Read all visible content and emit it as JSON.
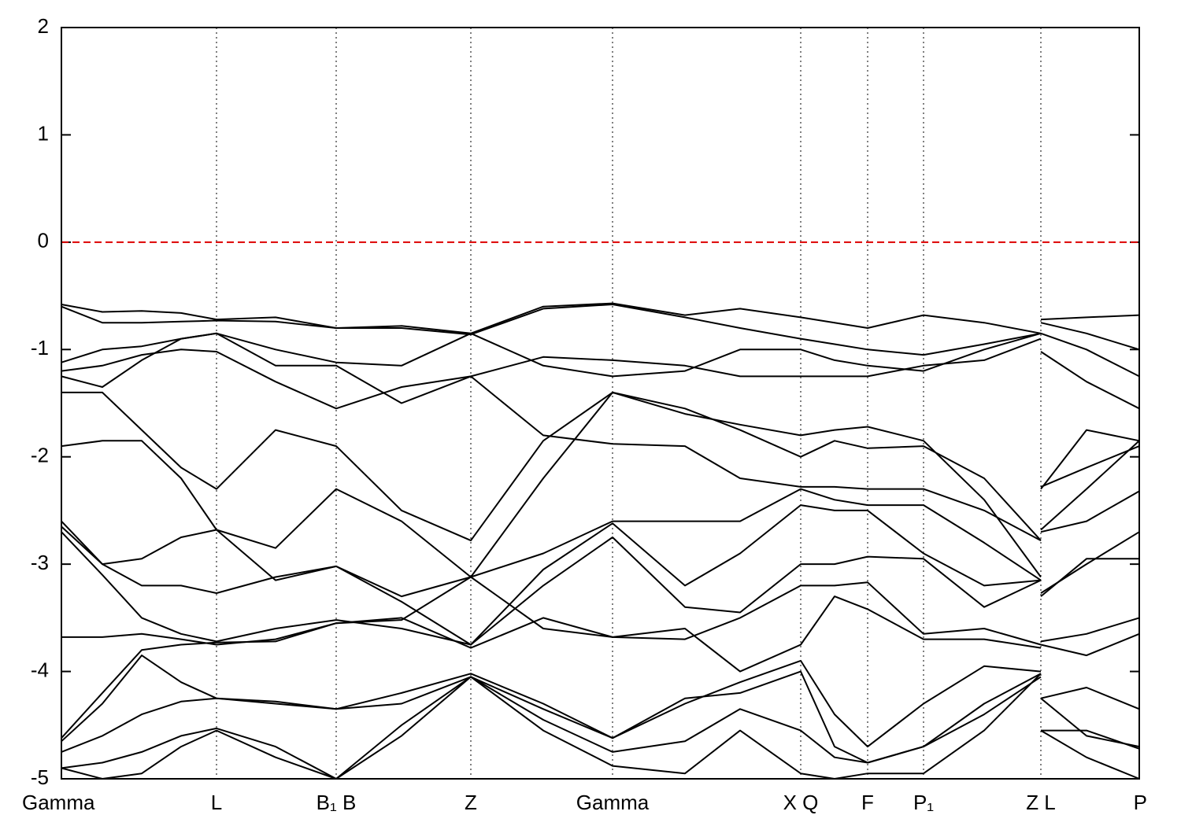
{
  "chart_data": {
    "type": "line",
    "xlim": [
      0,
      6.845
    ],
    "ylim": [
      -5,
      2
    ],
    "yticks": [
      -5,
      -4,
      -3,
      -2,
      -1,
      0,
      1,
      2
    ],
    "xticks": [
      {
        "value": 0,
        "label": "Gamma"
      },
      {
        "value": 0.985,
        "label": "L"
      },
      {
        "value": 1.745,
        "label": "B₁ B"
      },
      {
        "value": 2.6,
        "label": "Z"
      },
      {
        "value": 3.5,
        "label": "Gamma"
      },
      {
        "value": 4.695,
        "label": "X Q"
      },
      {
        "value": 5.12,
        "label": "F"
      },
      {
        "value": 5.475,
        "label": "P₁"
      },
      {
        "value": 6.22,
        "label": "Z L"
      },
      {
        "value": 6.845,
        "label": "P"
      }
    ],
    "grid": true,
    "fermi_level": 0,
    "fermi_color": "#dd0000",
    "x": [
      0,
      0.26,
      0.51,
      0.76,
      0.985,
      1.36,
      1.745,
      2.16,
      2.6,
      3.06,
      3.5,
      3.96,
      4.31,
      4.695,
      4.91,
      5.12,
      5.475,
      5.86,
      6.22,
      6.22,
      6.22,
      6.51,
      6.845
    ],
    "series": [
      {
        "color": "#000000",
        "values": [
          -0.58,
          -0.65,
          -0.64,
          -0.66,
          -0.72,
          -0.7,
          -0.8,
          -0.78,
          -0.85,
          -0.6,
          -0.57,
          -0.68,
          -0.62,
          -0.7,
          -0.75,
          -0.8,
          -0.68,
          -0.75,
          -0.85,
          null,
          -0.72,
          -0.7,
          -0.68
        ]
      },
      {
        "color": "#000000",
        "values": [
          -0.6,
          -0.75,
          -0.75,
          -0.74,
          -0.73,
          -0.74,
          -0.8,
          -0.8,
          -0.86,
          -0.62,
          -0.58,
          -0.7,
          -0.8,
          -0.9,
          -0.95,
          -1.0,
          -1.05,
          -0.95,
          -0.85,
          null,
          -0.75,
          -0.85,
          -1.0
        ]
      },
      {
        "color": "#000000",
        "values": [
          -1.12,
          -1.0,
          -0.97,
          -0.9,
          -0.85,
          -1.0,
          -1.12,
          -1.15,
          -0.85,
          -1.15,
          -1.25,
          -1.2,
          -1.0,
          -1.0,
          -1.1,
          -1.15,
          -1.2,
          -1.0,
          -0.85,
          null,
          -0.85,
          -1.0,
          -1.25
        ]
      },
      {
        "color": "#000000",
        "values": [
          -1.2,
          -1.15,
          -1.05,
          -1.0,
          -1.02,
          -1.3,
          -1.55,
          -1.35,
          -1.25,
          -1.07,
          -1.1,
          -1.15,
          -1.25,
          -1.25,
          -1.25,
          -1.25,
          -1.15,
          -1.1,
          -0.9,
          null,
          -1.02,
          -1.3,
          -1.55
        ]
      },
      {
        "color": "#000000",
        "values": [
          -1.25,
          -1.35,
          -1.1,
          -0.9,
          -0.85,
          -1.15,
          -1.15,
          -1.5,
          -1.25,
          -1.8,
          -1.88,
          -1.9,
          -2.2,
          -2.28,
          -2.28,
          -2.3,
          -2.3,
          -2.5,
          -2.78,
          null,
          -2.3,
          -1.75,
          -1.85
        ]
      },
      {
        "color": "#000000",
        "values": [
          -1.4,
          -1.4,
          -1.75,
          -2.1,
          -2.3,
          -1.75,
          -1.9,
          -2.5,
          -2.78,
          -1.85,
          -1.4,
          -1.55,
          -1.75,
          -2.0,
          -1.85,
          -1.92,
          -1.9,
          -2.2,
          -2.78,
          null,
          -2.28,
          -2.1,
          -1.9
        ]
      },
      {
        "color": "#000000",
        "values": [
          -1.9,
          -1.85,
          -1.85,
          -2.2,
          -2.68,
          -2.85,
          -2.3,
          -2.6,
          -3.12,
          -2.2,
          -1.4,
          -1.6,
          -1.7,
          -1.8,
          -1.75,
          -1.72,
          -1.85,
          -2.4,
          -3.12,
          null,
          -2.68,
          -2.3,
          -1.85
        ]
      },
      {
        "color": "#000000",
        "values": [
          -2.6,
          -3.0,
          -2.95,
          -2.75,
          -2.68,
          -3.15,
          -3.02,
          -3.3,
          -3.12,
          -2.9,
          -2.6,
          -2.6,
          -2.6,
          -2.3,
          -2.4,
          -2.45,
          -2.45,
          -2.8,
          -3.15,
          null,
          -2.7,
          -2.6,
          -2.32
        ]
      },
      {
        "color": "#000000",
        "values": [
          -2.65,
          -3.0,
          -3.2,
          -3.2,
          -3.27,
          -3.12,
          -3.02,
          -3.35,
          -3.75,
          -3.05,
          -2.62,
          -3.2,
          -2.9,
          -2.45,
          -2.5,
          -2.5,
          -2.9,
          -3.2,
          -3.15,
          null,
          -3.27,
          -3.0,
          -2.7
        ]
      },
      {
        "color": "#000000",
        "values": [
          -2.7,
          -3.1,
          -3.5,
          -3.65,
          -3.72,
          -3.6,
          -3.52,
          -3.6,
          -3.75,
          -3.2,
          -2.75,
          -3.4,
          -3.45,
          -3.0,
          -3.0,
          -2.93,
          -2.95,
          -3.4,
          -3.15,
          null,
          -3.3,
          -2.95,
          -2.95
        ]
      },
      {
        "color": "#000000",
        "values": [
          -3.68,
          -3.68,
          -3.65,
          -3.7,
          -3.75,
          -3.7,
          -3.55,
          -3.52,
          -3.12,
          -3.6,
          -3.68,
          -3.7,
          -3.5,
          -3.2,
          -3.2,
          -3.17,
          -3.65,
          -3.6,
          -3.75,
          null,
          -3.72,
          -3.65,
          -3.5
        ]
      },
      {
        "color": "#000000",
        "values": [
          -4.62,
          -4.2,
          -3.8,
          -3.75,
          -3.73,
          -3.72,
          -3.55,
          -3.5,
          -3.78,
          -3.5,
          -3.68,
          -3.6,
          -4.0,
          -3.75,
          -3.3,
          -3.42,
          -3.7,
          -3.7,
          -3.78,
          null,
          -3.75,
          -3.85,
          -3.65
        ]
      },
      {
        "color": "#000000",
        "values": [
          -4.65,
          -4.3,
          -3.85,
          -4.1,
          -4.25,
          -4.28,
          -4.35,
          -4.2,
          -4.02,
          -4.3,
          -4.62,
          -4.3,
          -4.1,
          -3.9,
          -4.4,
          -4.7,
          -4.3,
          -3.95,
          -4.0,
          null,
          -4.25,
          -4.15,
          -4.35
        ]
      },
      {
        "color": "#000000",
        "values": [
          -4.75,
          -4.6,
          -4.4,
          -4.28,
          -4.25,
          -4.3,
          -4.35,
          -4.3,
          -4.05,
          -4.35,
          -4.62,
          -4.25,
          -4.2,
          -4.0,
          -4.7,
          -4.85,
          -4.7,
          -4.3,
          -4.02,
          null,
          -4.25,
          -4.6,
          -4.7
        ]
      },
      {
        "color": "#000000",
        "values": [
          -4.9,
          -4.85,
          -4.75,
          -4.6,
          -4.53,
          -4.7,
          -5.0,
          -4.5,
          -4.05,
          -4.45,
          -4.75,
          -4.65,
          -4.35,
          -4.55,
          -4.8,
          -4.85,
          -4.7,
          -4.4,
          -4.05,
          null,
          -4.55,
          -4.55,
          -4.72
        ]
      },
      {
        "color": "#000000",
        "values": [
          -4.9,
          -5.0,
          -4.95,
          -4.7,
          -4.55,
          -4.8,
          -5.0,
          -4.6,
          -4.05,
          -4.55,
          -4.88,
          -4.95,
          -4.55,
          -4.95,
          -5.0,
          -4.95,
          -4.95,
          -4.55,
          -4.02,
          null,
          -4.55,
          -4.8,
          -5.0
        ]
      }
    ]
  }
}
